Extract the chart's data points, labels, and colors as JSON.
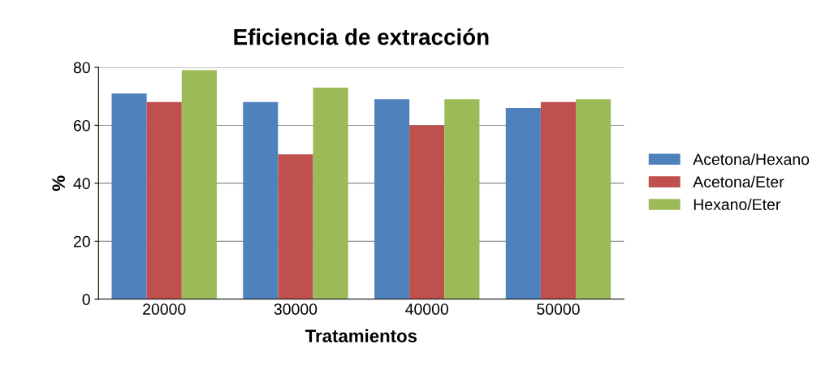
{
  "chart_data": {
    "type": "bar",
    "title": "Eficiencia de extracción",
    "xlabel": "Tratamientos",
    "ylabel": "%",
    "categories": [
      "20000",
      "30000",
      "40000",
      "50000"
    ],
    "series": [
      {
        "name": "Acetona/Hexano",
        "color": "#4f81bd",
        "values": [
          71,
          68,
          69,
          66
        ]
      },
      {
        "name": "Acetona/Eter",
        "color": "#c0504d",
        "values": [
          68,
          50,
          60,
          68
        ]
      },
      {
        "name": "Hexano/Eter",
        "color": "#9bbb59",
        "values": [
          79,
          73,
          69,
          69
        ]
      }
    ],
    "ylim": [
      0,
      80
    ],
    "yticks": [
      0,
      20,
      40,
      60,
      80
    ],
    "grid": "y",
    "legend": "right"
  }
}
